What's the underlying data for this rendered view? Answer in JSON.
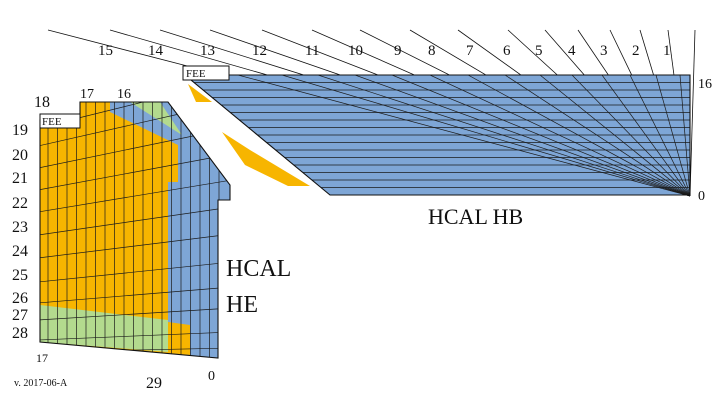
{
  "colors": {
    "blue": "#7ea6d6",
    "orange": "#f7b500",
    "green": "#b3da8e",
    "line": "#111111"
  },
  "hb": {
    "title": "HCAL  HB",
    "eta_labels": [
      "15",
      "14",
      "13",
      "12",
      "11",
      "10",
      "9",
      "8",
      "7",
      "6",
      "5",
      "4",
      "3",
      "2",
      "1"
    ],
    "depth_top": "16",
    "depth_bottom": "0",
    "fee_label": "FEE"
  },
  "he": {
    "title_line1": "HCAL",
    "title_line2": "HE",
    "eta_labels": [
      "18",
      "19",
      "20",
      "21",
      "22",
      "23",
      "24",
      "25",
      "26",
      "27",
      "28"
    ],
    "top_labels": [
      "17",
      "16"
    ],
    "bottom_left": "17",
    "bottom_mid": "29",
    "bottom_right": "0",
    "fee_label": "FEE"
  },
  "version": "v. 2017-06-A"
}
